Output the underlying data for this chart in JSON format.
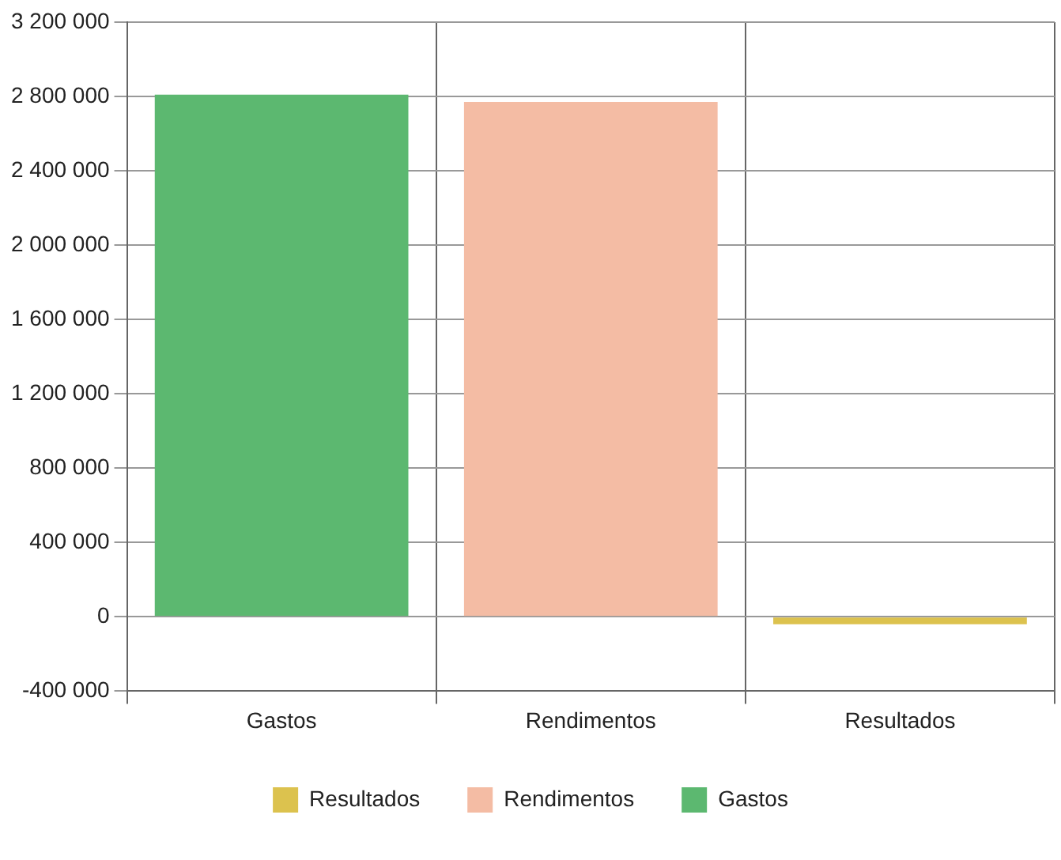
{
  "chart_data": {
    "type": "bar",
    "categories": [
      "Gastos",
      "Rendimentos",
      "Resultados"
    ],
    "series": [
      {
        "name": "Resultados",
        "color": "#dcc24e",
        "values": [
          null,
          null,
          -40000
        ]
      },
      {
        "name": "Rendimentos",
        "color": "#f4bca4",
        "values": [
          null,
          2770000,
          null
        ]
      },
      {
        "name": "Gastos",
        "color": "#5cb870",
        "values": [
          2810000,
          null,
          null
        ]
      }
    ],
    "ylim": [
      -400000,
      3200000
    ],
    "yticks": [
      {
        "value": -400000,
        "label": "-400 000"
      },
      0,
      {
        "value": 400000,
        "label": "400 000"
      },
      {
        "value": 800000,
        "label": "800 000"
      },
      {
        "value": 1200000,
        "label": "1 200 000"
      },
      {
        "value": 1600000,
        "label": "1 600 000"
      },
      {
        "value": 2000000,
        "label": "2 000 000"
      },
      {
        "value": 2400000,
        "label": "2 400 000"
      },
      {
        "value": 2800000,
        "label": "2 800 000"
      },
      {
        "value": 3200000,
        "label": "3 200 000"
      }
    ],
    "grid": true,
    "legend": "bottom"
  }
}
